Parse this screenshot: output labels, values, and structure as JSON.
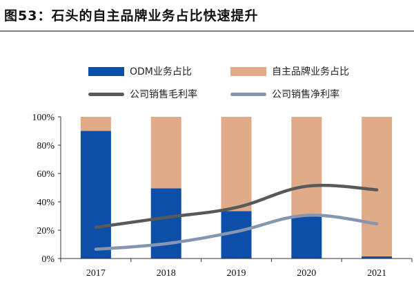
{
  "figure": {
    "title": "图53：石头的自主品牌业务占比快速提升"
  },
  "colors": {
    "odm": "#0d4fa8",
    "own_brand": "#e0ab88",
    "gross_margin": "#595959",
    "net_margin": "#8496b0",
    "axis": "#333333",
    "title_rule": "#7f7f7f"
  },
  "chart_data": {
    "type": "bar",
    "stacked": true,
    "categories": [
      "2017",
      "2018",
      "2019",
      "2020",
      "2021"
    ],
    "series": [
      {
        "name": "ODM业务占比",
        "kind": "bar",
        "values": [
          90,
          49.5,
          33.5,
          30,
          1.5
        ]
      },
      {
        "name": "自主品牌业务占比",
        "kind": "bar",
        "values": [
          10,
          50.5,
          66.5,
          70,
          98.5
        ]
      },
      {
        "name": "公司销售毛利率",
        "kind": "line",
        "values": [
          22,
          29,
          36,
          51,
          48.5
        ]
      },
      {
        "name": "公司销售净利率",
        "kind": "line",
        "values": [
          6.5,
          10.5,
          19,
          30.5,
          24.5
        ]
      }
    ],
    "y_ticks": [
      "0%",
      "20%",
      "40%",
      "60%",
      "80%",
      "100%"
    ],
    "ylim": [
      0,
      100
    ],
    "xlabel": "",
    "ylabel": "",
    "legend_position": "top",
    "grid": false
  }
}
